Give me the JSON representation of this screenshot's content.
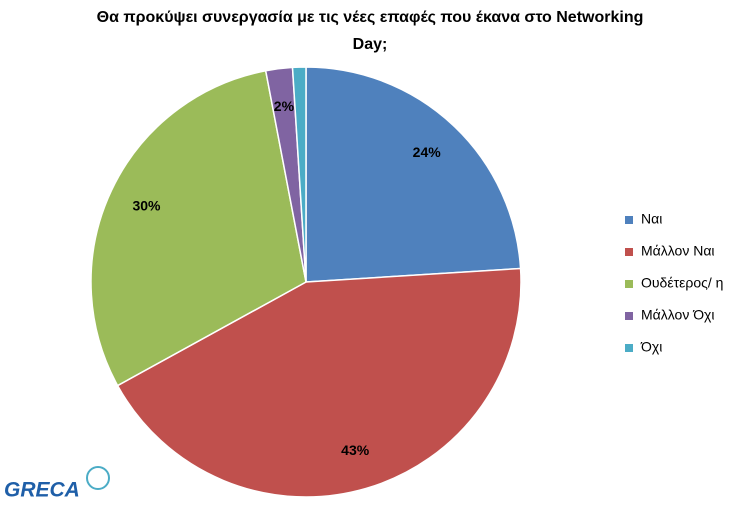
{
  "chart_data": {
    "type": "pie",
    "title": "Θα προκύψει συνεργασία με τις νέες επαφές που έκανα στο Networking Day;",
    "categories": [
      "Ναι",
      "Μάλλον Ναι",
      "Ουδέτερος/ η",
      "Μάλλον Όχι",
      "Όχι"
    ],
    "values": [
      24,
      43,
      30,
      2,
      1
    ],
    "value_labels": [
      "24%",
      "43%",
      "30%",
      "2%",
      null
    ],
    "colors": [
      "#4f81bd",
      "#c0504d",
      "#9bbb59",
      "#8064a2",
      "#4bacc6"
    ],
    "legend": "right"
  },
  "logo": "GRECA"
}
